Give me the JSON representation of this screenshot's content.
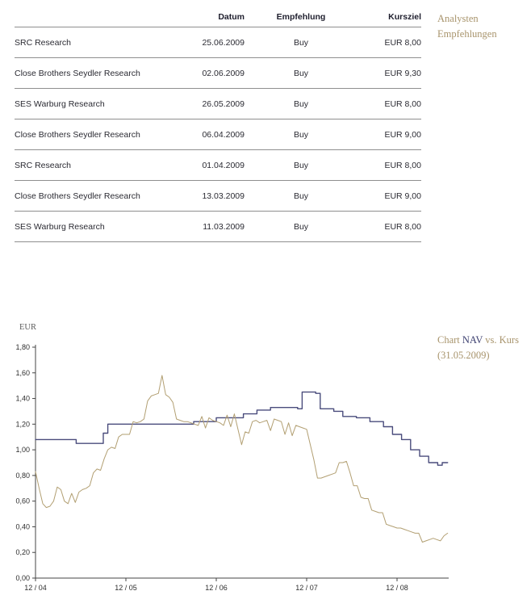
{
  "side_labels": {
    "table_label_line1": "Analysten",
    "table_label_line2": "Empfehlungen",
    "chart_label_prefix": "Chart ",
    "chart_label_nav": "NAV",
    "chart_label_suffix": " vs. Kurs",
    "chart_label_date": "(31.05.2009)"
  },
  "table": {
    "headers": [
      "",
      "Datum",
      "Empfehlung",
      "Kursziel"
    ],
    "rows": [
      [
        "SRC Research",
        "25.06.2009",
        "Buy",
        "EUR 8,00"
      ],
      [
        "Close Brothers Seydler Research",
        "02.06.2009",
        "Buy",
        "EUR 9,30"
      ],
      [
        "SES Warburg Research",
        "26.05.2009",
        "Buy",
        "EUR 8,00"
      ],
      [
        "Close Brothers Seydler Research",
        "06.04.2009",
        "Buy",
        "EUR 9,00"
      ],
      [
        "SRC Research",
        "01.04.2009",
        "Buy",
        "EUR 8,00"
      ],
      [
        "Close Brothers Seydler Research",
        "13.03.2009",
        "Buy",
        "EUR 9,00"
      ],
      [
        "SES Warburg Research",
        "11.03.2009",
        "Buy",
        "EUR 8,00"
      ]
    ]
  },
  "chart_data": {
    "type": "line",
    "title": "Chart NAV vs. Kurs (31.05.2009)",
    "ylabel": "EUR",
    "ylim": [
      0,
      1.8
    ],
    "ytick_step": 0.2,
    "ytick_labels": [
      "0,00",
      "0,20",
      "0,40",
      "0,60",
      "0,80",
      "1,00",
      "1,20",
      "1,40",
      "1,60",
      "1,80"
    ],
    "xlim": [
      0,
      4.56
    ],
    "xticks": [
      0,
      1,
      2,
      3,
      4
    ],
    "xtick_labels": [
      "12 / 04",
      "12 / 05",
      "12 / 06",
      "12 / 07",
      "12 / 08"
    ],
    "grid": false,
    "legend": "none",
    "colors": {
      "nav": "#4a4c7c",
      "kurs": "#b29f72",
      "axis": "#444444",
      "accent_text": "#a8946c"
    },
    "series": [
      {
        "name": "NAV",
        "color": "#4a4c7c",
        "style": "step",
        "points": [
          [
            0.0,
            1.08
          ],
          [
            0.45,
            1.05
          ],
          [
            0.75,
            1.13
          ],
          [
            0.8,
            1.2
          ],
          [
            1.75,
            1.22
          ],
          [
            2.0,
            1.25
          ],
          [
            2.3,
            1.28
          ],
          [
            2.45,
            1.31
          ],
          [
            2.6,
            1.33
          ],
          [
            2.9,
            1.32
          ],
          [
            2.95,
            1.45
          ],
          [
            3.1,
            1.44
          ],
          [
            3.15,
            1.32
          ],
          [
            3.3,
            1.3
          ],
          [
            3.4,
            1.26
          ],
          [
            3.55,
            1.25
          ],
          [
            3.7,
            1.22
          ],
          [
            3.85,
            1.18
          ],
          [
            3.95,
            1.12
          ],
          [
            4.05,
            1.08
          ],
          [
            4.15,
            1.0
          ],
          [
            4.25,
            0.95
          ],
          [
            4.35,
            0.9
          ],
          [
            4.45,
            0.88
          ],
          [
            4.5,
            0.9
          ],
          [
            4.56,
            0.9
          ]
        ]
      },
      {
        "name": "Kurs",
        "color": "#b29f72",
        "style": "line",
        "x_start": 0,
        "x_step": 0.04,
        "values": [
          0.83,
          0.7,
          0.58,
          0.55,
          0.56,
          0.6,
          0.71,
          0.69,
          0.6,
          0.58,
          0.66,
          0.59,
          0.67,
          0.69,
          0.7,
          0.72,
          0.82,
          0.85,
          0.84,
          0.93,
          1.0,
          1.02,
          1.01,
          1.1,
          1.12,
          1.12,
          1.12,
          1.22,
          1.21,
          1.22,
          1.24,
          1.38,
          1.42,
          1.43,
          1.44,
          1.58,
          1.43,
          1.41,
          1.37,
          1.24,
          1.23,
          1.22,
          1.22,
          1.21,
          1.2,
          1.19,
          1.26,
          1.17,
          1.25,
          1.23,
          1.22,
          1.21,
          1.19,
          1.27,
          1.18,
          1.28,
          1.16,
          1.04,
          1.14,
          1.13,
          1.22,
          1.23,
          1.21,
          1.22,
          1.23,
          1.15,
          1.24,
          1.23,
          1.22,
          1.12,
          1.21,
          1.11,
          1.19,
          1.18,
          1.17,
          1.16,
          1.04,
          0.92,
          0.78,
          0.78,
          0.79,
          0.8,
          0.81,
          0.82,
          0.9,
          0.9,
          0.91,
          0.82,
          0.72,
          0.72,
          0.63,
          0.62,
          0.62,
          0.53,
          0.52,
          0.51,
          0.51,
          0.42,
          0.41,
          0.4,
          0.39,
          0.39,
          0.38,
          0.37,
          0.36,
          0.35,
          0.35,
          0.28,
          0.29,
          0.3,
          0.31,
          0.3,
          0.29,
          0.33,
          0.35
        ]
      }
    ]
  }
}
